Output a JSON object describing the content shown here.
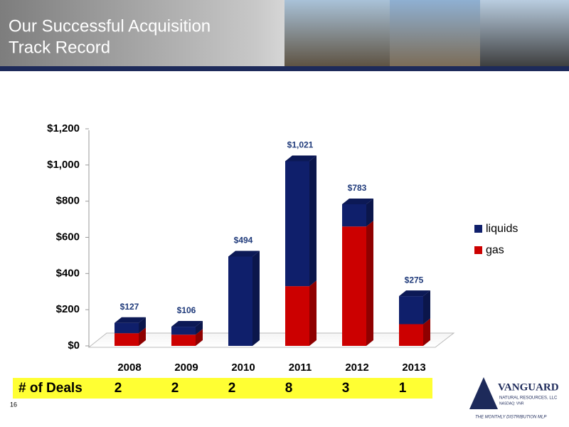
{
  "header": {
    "title_lines": [
      "Our Successful Acquisition",
      "Track Record"
    ]
  },
  "chart_data": {
    "type": "bar",
    "stacked": true,
    "categories": [
      "2008",
      "2009",
      "2010",
      "2011",
      "2012",
      "2013"
    ],
    "series": [
      {
        "name": "gas",
        "color": "#cc0000",
        "values": [
          70,
          62,
          0,
          330,
          660,
          120
        ]
      },
      {
        "name": "liquids",
        "color": "#0f1f6b",
        "values": [
          57,
          44,
          494,
          691,
          123,
          155
        ]
      }
    ],
    "totals": [
      127,
      106,
      494,
      1021,
      783,
      275
    ],
    "total_labels": [
      "$127",
      "$106",
      "$494",
      "$1,021",
      "$783",
      "$275"
    ],
    "ylim": [
      0,
      1200
    ],
    "yticks": [
      {
        "value": 0,
        "label": "$0"
      },
      {
        "value": 200,
        "label": "$200"
      },
      {
        "value": 400,
        "label": "$400"
      },
      {
        "value": 600,
        "label": "$600"
      },
      {
        "value": 800,
        "label": "$800"
      },
      {
        "value": 1000,
        "label": "$1,000"
      },
      {
        "value": 1200,
        "label": "$1,200"
      }
    ],
    "legend": "right"
  },
  "deals": {
    "label": "# of Deals",
    "values": [
      2,
      2,
      2,
      8,
      3,
      1
    ]
  },
  "footer": {
    "page": "16",
    "logo": "VANGUARD",
    "logo_sub": "NATURAL RESOURCES, LLC",
    "logo_ticker": "NASDAQ: VNR",
    "tagline": "THE MONTHLY DISTRIBUTION MLP"
  }
}
